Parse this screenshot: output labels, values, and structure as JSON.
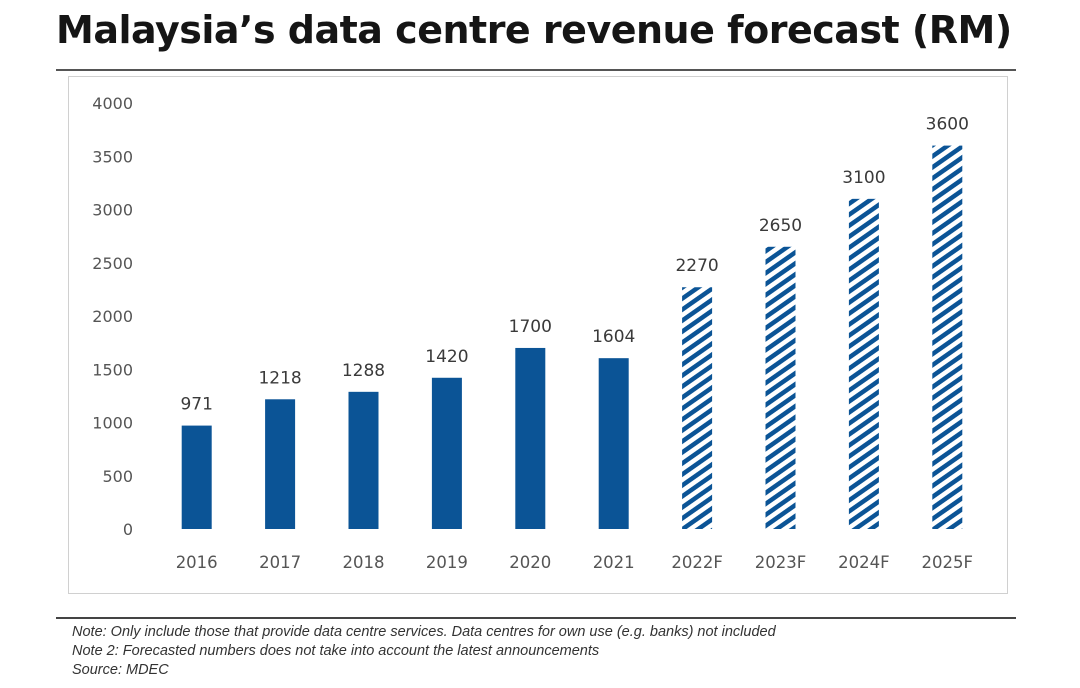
{
  "title": "Malaysia’s data centre revenue forecast (RM)",
  "notes": [
    "Note: Only include those that provide data centre services. Data centres for own use (e.g. banks) not included",
    "Note 2: Forecasted numbers does not take into account the latest announcements",
    "Source: MDEC"
  ],
  "colors": {
    "bar": "#0b5496",
    "axis_text": "#555555",
    "label_text": "#3a3a3a"
  },
  "chart_data": {
    "type": "bar",
    "title": "Malaysia’s data centre revenue forecast (RM)",
    "categories": [
      "2016",
      "2017",
      "2018",
      "2019",
      "2020",
      "2021",
      "2022F",
      "2023F",
      "2024F",
      "2025F"
    ],
    "values": [
      971,
      1218,
      1288,
      1420,
      1700,
      1604,
      2270,
      2650,
      3100,
      3600
    ],
    "forecast": [
      false,
      false,
      false,
      false,
      false,
      false,
      true,
      true,
      true,
      true
    ],
    "ylim": [
      0,
      4000
    ],
    "yticks": [
      0,
      500,
      1000,
      1500,
      2000,
      2500,
      3000,
      3500,
      4000
    ],
    "data_labels": true,
    "grid": false,
    "legend": "none",
    "xlabel": "",
    "ylabel": ""
  }
}
